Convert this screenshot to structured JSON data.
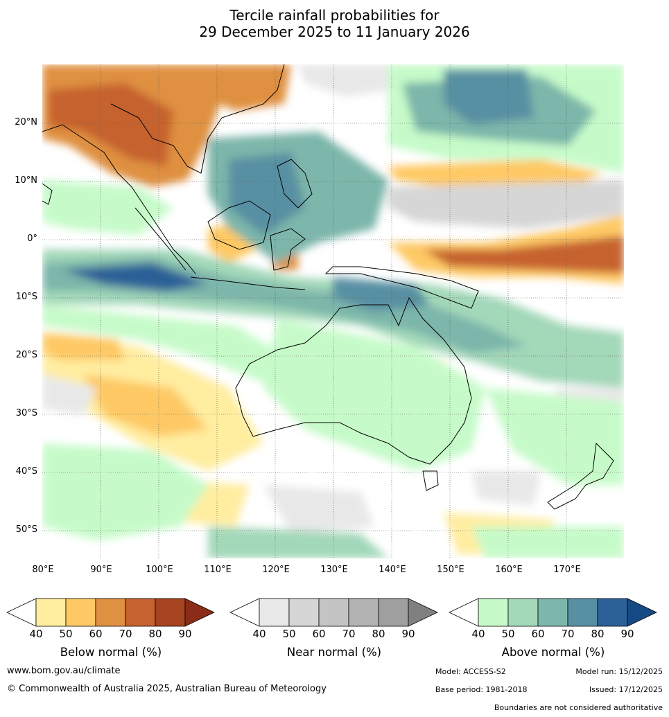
{
  "title_line1": "Tercile rainfall probabilities for",
  "title_line2": "29 December 2025 to 11 January 2026",
  "lat_labels": [
    "20°N",
    "10°N",
    "0°",
    "10°S",
    "20°S",
    "30°S",
    "40°S",
    "50°S"
  ],
  "lon_labels": [
    "80°E",
    "90°E",
    "100°E",
    "110°E",
    "120°E",
    "130°E",
    "140°E",
    "150°E",
    "160°E",
    "170°E"
  ],
  "colorbars": [
    {
      "label": "Below normal (%)",
      "ticks": [
        "40",
        "50",
        "60",
        "70",
        "80",
        "90"
      ],
      "colors": [
        "#ffffff",
        "#ffeda0",
        "#fec965",
        "#df9041",
        "#c6622f",
        "#a6441f",
        "#8a2c18"
      ]
    },
    {
      "label": "Near normal (%)",
      "ticks": [
        "40",
        "50",
        "60",
        "70",
        "80",
        "90"
      ],
      "colors": [
        "#ffffff",
        "#e8e8e8",
        "#d6d6d6",
        "#c4c4c4",
        "#b3b3b3",
        "#9f9f9f",
        "#808080"
      ]
    },
    {
      "label": "Above normal (%)",
      "ticks": [
        "40",
        "50",
        "60",
        "70",
        "80",
        "90"
      ],
      "colors": [
        "#ffffff",
        "#c6fbc9",
        "#a3d8b9",
        "#7db6aa",
        "#5890a3",
        "#2c6197",
        "#154b85"
      ]
    }
  ],
  "footer": {
    "website": "www.bom.gov.au/climate",
    "copyright": "© Commonwealth of Australia 2025, Australian Bureau of Meteorology",
    "model": "Model: ACCESS-S2",
    "model_run": "Model run: 15/12/2025",
    "base_period": "Base period: 1981-2018",
    "issued": "Issued: 17/12/2025",
    "boundaries_note": "Boundaries are not considered authoritative"
  }
}
